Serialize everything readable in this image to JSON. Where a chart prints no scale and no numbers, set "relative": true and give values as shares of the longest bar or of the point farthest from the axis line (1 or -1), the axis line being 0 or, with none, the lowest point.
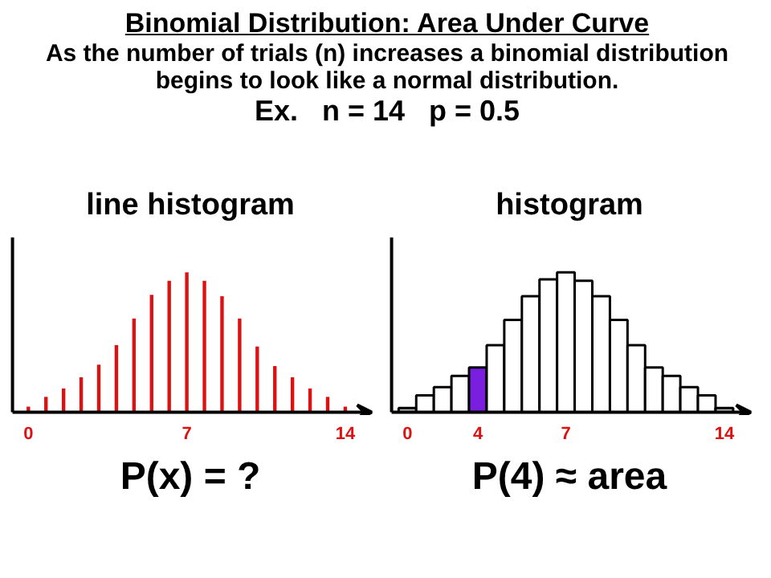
{
  "chart_data": [
    {
      "type": "bar",
      "title": "line histogram",
      "subtitle": "As the number of trials (n) increases a binomial distribution begins to look like a normal distribution.",
      "annotations": [
        "Binomial Distribution: Area Under Curve",
        "Ex.   n = 14   p = 0.5",
        "P(x) = ?"
      ],
      "relative": true,
      "tick_labels": "x",
      "grid": false,
      "categories": [
        "0",
        null,
        null,
        null,
        null,
        null,
        null,
        null,
        null,
        "7",
        null,
        null,
        null,
        null,
        null,
        null,
        null,
        null,
        "14"
      ],
      "series": [
        {
          "color": "#dd1111",
          "values": [
            0.04,
            0.11,
            0.17,
            0.25,
            0.34,
            0.48,
            0.67,
            0.84,
            0.94,
            1,
            0.94,
            0.83,
            0.67,
            0.47,
            0.33,
            0.25,
            0.17,
            0.11,
            0.04
          ]
        }
      ]
    },
    {
      "type": "bar",
      "title": "histogram",
      "annotations": [
        "P(4) ≈ area"
      ],
      "relative": true,
      "tick_labels": "x",
      "grid": false,
      "categories": [
        "0",
        null,
        null,
        null,
        "4",
        null,
        null,
        null,
        null,
        "7",
        null,
        null,
        null,
        null,
        null,
        null,
        null,
        null,
        "14"
      ],
      "series": [
        {
          "colors": [
            "#bbbbbb",
            "#ffffff",
            "#ffffff",
            "#ffffff",
            "#7a1fe0",
            "#ffffff",
            "#ffffff",
            "#ffffff",
            "#ffffff",
            "#ffffff",
            "#ffffff",
            "#ffffff",
            "#ffffff",
            "#ffffff",
            "#ffffff",
            "#ffffff",
            "#ffffff",
            "#ffffff",
            "#bbbbbb"
          ],
          "values": [
            0.03,
            0.12,
            0.18,
            0.26,
            0.32,
            0.48,
            0.66,
            0.83,
            0.95,
            1,
            0.94,
            0.83,
            0.66,
            0.48,
            0.32,
            0.26,
            0.18,
            0.12,
            0.03
          ]
        }
      ]
    }
  ]
}
